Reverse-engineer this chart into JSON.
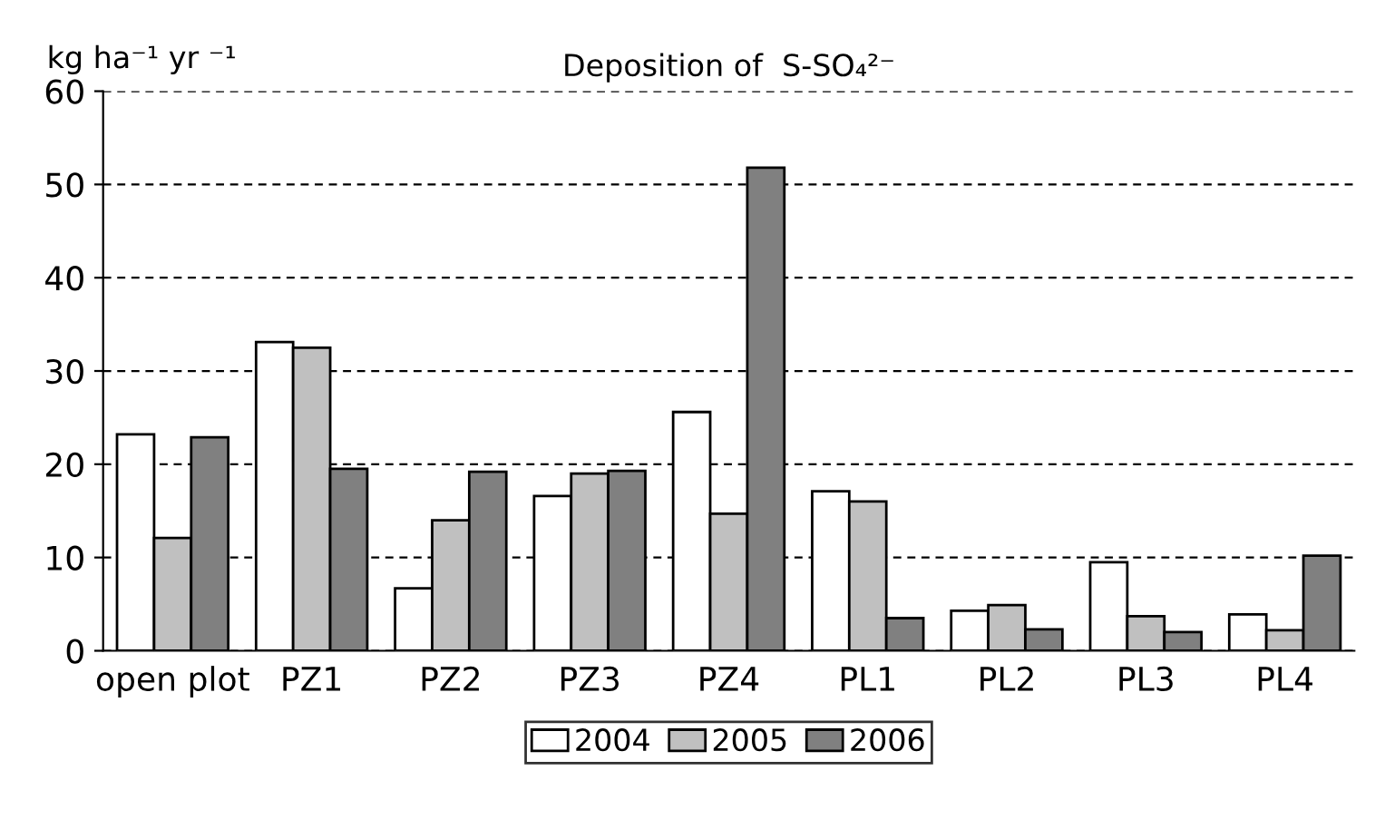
{
  "chart_data": {
    "type": "bar",
    "title": "Deposition of  S-SO₄²⁻",
    "ylabel": "kg ha⁻¹ yr ⁻¹",
    "categories": [
      "open plot",
      "PZ1",
      "PZ2",
      "PZ3",
      "PZ4",
      "PL1",
      "PL2",
      "PL3",
      "PL4"
    ],
    "series": [
      {
        "name": "2004",
        "color": "#ffffff",
        "values": [
          23.2,
          33.1,
          6.7,
          16.6,
          25.6,
          17.1,
          4.3,
          9.5,
          3.9
        ]
      },
      {
        "name": "2005",
        "color": "#c0c0c0",
        "values": [
          12.1,
          32.5,
          14.0,
          19.0,
          14.7,
          16.0,
          4.9,
          3.7,
          2.2
        ]
      },
      {
        "name": "2006",
        "color": "#808080",
        "values": [
          22.9,
          19.5,
          19.2,
          19.3,
          51.8,
          3.5,
          2.3,
          2.0,
          10.2
        ]
      }
    ],
    "ylim": [
      0,
      60
    ],
    "yticks": [
      0,
      10,
      20,
      30,
      40,
      50,
      60
    ],
    "grid": "y",
    "legend": "bottom"
  }
}
